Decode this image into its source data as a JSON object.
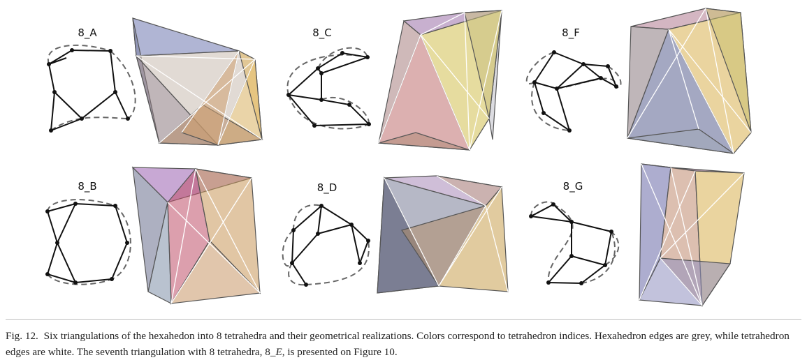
{
  "figure": {
    "panels": [
      {
        "id": "a",
        "label": "8_A"
      },
      {
        "id": "c",
        "label": "8_C"
      },
      {
        "id": "f",
        "label": "8_F"
      },
      {
        "id": "b",
        "label": "8_B"
      },
      {
        "id": "d",
        "label": "8_D"
      },
      {
        "id": "g",
        "label": "8_G"
      }
    ],
    "colors": {
      "blue": "#8a8fb8",
      "purple": "#a07ab8",
      "pink": "#c08a9a",
      "grey": "#9a9aa6",
      "yellow": "#d8c868",
      "orange": "#d49a5a",
      "brown": "#a8876a",
      "hex_edge": "#555555",
      "tet_edge": "#ffffff",
      "graph_edge": "#111111",
      "dashed": "#666666"
    }
  },
  "caption": {
    "fig_number": "Fig. 12.",
    "text_1": "Six triangulations of the hexahedon into 8 tetrahedra and their geometrical realizations. Colors correspond to tetrahedron indices. Hexahedron edges are grey, while tetrahedron edges are white. The seventh triangulation with 8 tetrahedra, 8",
    "italic": "_E",
    "text_2": ", is presented on Figure 10."
  }
}
